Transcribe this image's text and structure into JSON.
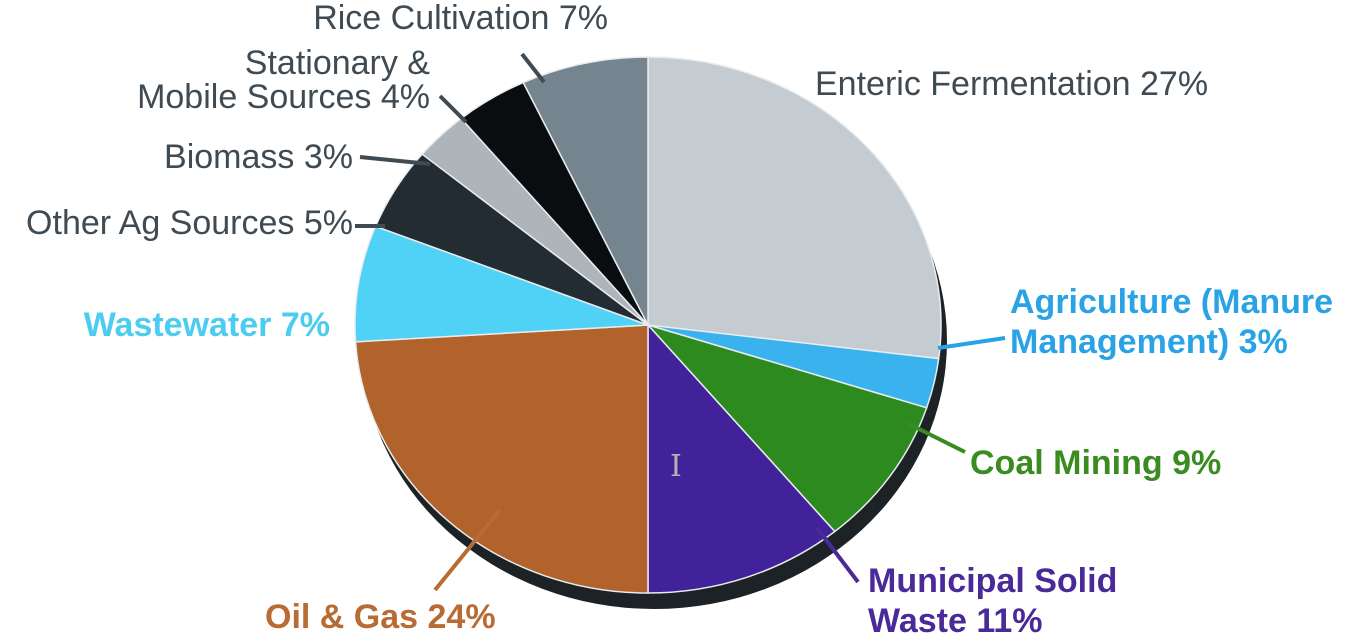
{
  "chart_data": {
    "type": "pie",
    "title": "",
    "slices": [
      {
        "label": "Enteric Fermentation 27%",
        "lines": [
          "Enteric Fermentation 27%"
        ],
        "value": 27,
        "color": "#c4ccd2",
        "label_color": "#3f4a52"
      },
      {
        "label": "Agriculture (Manure Management) 3%",
        "lines": [
          "Agriculture (Manure",
          "Management) 3%"
        ],
        "value": 3,
        "color": "#3ab2ee",
        "label_color": "#2aa3e6"
      },
      {
        "label": "Coal Mining 9%",
        "lines": [
          "Coal Mining 9%"
        ],
        "value": 9,
        "color": "#2d8a1e",
        "label_color": "#3a8c20"
      },
      {
        "label": "Municipal Solid Waste 11%",
        "lines": [
          "Municipal Solid",
          "Waste 11%"
        ],
        "value": 11,
        "color": "#41229a",
        "label_color": "#4a2a98"
      },
      {
        "label": "Oil & Gas 24%",
        "lines": [
          "Oil & Gas 24%"
        ],
        "value": 24,
        "color": "#b2632c",
        "label_color": "#b86b32"
      },
      {
        "label": "Wastewater 7%",
        "lines": [
          "Wastewater 7%"
        ],
        "value": 7,
        "color": "#4fd2f5",
        "label_color": "#4cccf0"
      },
      {
        "label": "Other Ag Sources 5%",
        "lines": [
          "Other Ag Sources 5%"
        ],
        "value": 5,
        "color": "#232c33",
        "label_color": "#3f4a52"
      },
      {
        "label": "Biomass 3%",
        "lines": [
          "Biomass 3%"
        ],
        "value": 3,
        "color": "#aeb5ba",
        "label_color": "#3f4a52"
      },
      {
        "label": "Stationary & Mobile Sources 4%",
        "lines": [
          "Stationary &",
          "Mobile Sources 4%"
        ],
        "value": 4,
        "color": "#0a0d10",
        "label_color": "#3f4a52"
      },
      {
        "label": "Rice Cultivation 7%",
        "lines": [
          "Rice Cultivation 7%"
        ],
        "value": 7,
        "color": "#75858f",
        "label_color": "#3f4a52"
      }
    ],
    "legend": "none",
    "start_direction": "top, clockwise"
  }
}
